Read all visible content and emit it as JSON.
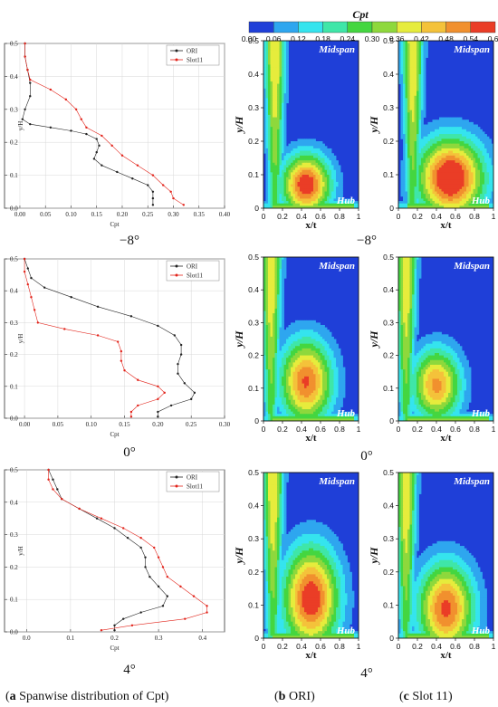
{
  "colorbar": {
    "title": "Cpt",
    "ticks": [
      "0.00",
      "0.06",
      "0.12",
      "0.18",
      "0.24",
      "0.30",
      "0.36",
      "0.42",
      "0.48",
      "0.54",
      "0.60"
    ],
    "colors": [
      "#1f3fd8",
      "#2ea6ef",
      "#35e4ee",
      "#3fe6a8",
      "#44d640",
      "#8ed83c",
      "#e6ec3c",
      "#f4c23a",
      "#f1902e",
      "#ea3d26"
    ]
  },
  "panel_labels": {
    "midspan": "Midspan",
    "hub": "Hub"
  },
  "contour_axes": {
    "ylabel": "y/H",
    "xlabel": "x/t",
    "yticks": [
      "0",
      "0.1",
      "0.2",
      "0.3",
      "0.4",
      "0.5"
    ],
    "xticks": [
      "0",
      "0.2",
      "0.4",
      "0.6",
      "0.8",
      "1"
    ]
  },
  "angles": [
    "−8°",
    "0°",
    "4°"
  ],
  "captions": {
    "a_letter": "a",
    "a_text": " Spanwise distribution of Cpt",
    "b_letter": "b",
    "b_text": " ORI",
    "c_letter": "c",
    "c_text": " Slot 11"
  },
  "chart_data": [
    {
      "type": "line",
      "angle": "−8°",
      "xlabel": "Cpt",
      "ylabel": "y/H",
      "xlim": [
        -0.03,
        0.4
      ],
      "ylim": [
        0,
        0.5
      ],
      "xticks": [
        "0.00",
        "0.05",
        "0.10",
        "0.15",
        "0.20",
        "0.25",
        "0.30",
        "0.35",
        "0.40"
      ],
      "yticks": [
        "0.0",
        "0.1",
        "0.2",
        "0.3",
        "0.4",
        "0.5"
      ],
      "legend_position": "top-right",
      "series": [
        {
          "name": "ORI",
          "color": "#222222",
          "points": [
            [
              0.01,
              0.5
            ],
            [
              0.01,
              0.46
            ],
            [
              0.015,
              0.42
            ],
            [
              0.02,
              0.38
            ],
            [
              0.02,
              0.34
            ],
            [
              0.01,
              0.3
            ],
            [
              0.005,
              0.27
            ],
            [
              0.02,
              0.255
            ],
            [
              0.06,
              0.245
            ],
            [
              0.1,
              0.235
            ],
            [
              0.13,
              0.225
            ],
            [
              0.15,
              0.21
            ],
            [
              0.155,
              0.19
            ],
            [
              0.15,
              0.17
            ],
            [
              0.145,
              0.15
            ],
            [
              0.16,
              0.13
            ],
            [
              0.19,
              0.11
            ],
            [
              0.22,
              0.09
            ],
            [
              0.25,
              0.07
            ],
            [
              0.26,
              0.05
            ],
            [
              0.26,
              0.03
            ],
            [
              0.26,
              0.01
            ]
          ]
        },
        {
          "name": "Slot11",
          "color": "#e2231a",
          "points": [
            [
              0.01,
              0.5
            ],
            [
              0.01,
              0.46
            ],
            [
              0.015,
              0.42
            ],
            [
              0.02,
              0.39
            ],
            [
              0.06,
              0.36
            ],
            [
              0.09,
              0.33
            ],
            [
              0.11,
              0.3
            ],
            [
              0.12,
              0.27
            ],
            [
              0.13,
              0.245
            ],
            [
              0.16,
              0.22
            ],
            [
              0.18,
              0.19
            ],
            [
              0.2,
              0.16
            ],
            [
              0.23,
              0.13
            ],
            [
              0.26,
              0.1
            ],
            [
              0.28,
              0.07
            ],
            [
              0.295,
              0.05
            ],
            [
              0.3,
              0.03
            ],
            [
              0.32,
              0.01
            ]
          ]
        }
      ]
    },
    {
      "type": "line",
      "angle": "0°",
      "xlabel": "Cpt",
      "ylabel": "y/H",
      "xlim": [
        -0.03,
        0.3
      ],
      "ylim": [
        0,
        0.5
      ],
      "xticks": [
        "0.00",
        "0.05",
        "0.10",
        "0.15",
        "0.20",
        "0.25",
        "0.30"
      ],
      "yticks": [
        "0.0",
        "0.1",
        "0.2",
        "0.3",
        "0.4",
        "0.5"
      ],
      "legend_position": "top-right",
      "series": [
        {
          "name": "ORI",
          "color": "#222222",
          "points": [
            [
              0.0,
              0.5
            ],
            [
              0.005,
              0.47
            ],
            [
              0.01,
              0.44
            ],
            [
              0.03,
              0.41
            ],
            [
              0.07,
              0.38
            ],
            [
              0.11,
              0.35
            ],
            [
              0.16,
              0.32
            ],
            [
              0.2,
              0.29
            ],
            [
              0.225,
              0.26
            ],
            [
              0.235,
              0.23
            ],
            [
              0.235,
              0.2
            ],
            [
              0.23,
              0.17
            ],
            [
              0.23,
              0.14
            ],
            [
              0.24,
              0.11
            ],
            [
              0.255,
              0.08
            ],
            [
              0.25,
              0.06
            ],
            [
              0.22,
              0.04
            ],
            [
              0.2,
              0.02
            ],
            [
              0.2,
              0.005
            ]
          ]
        },
        {
          "name": "Slot11",
          "color": "#e2231a",
          "points": [
            [
              0.0,
              0.5
            ],
            [
              0.0,
              0.46
            ],
            [
              0.005,
              0.42
            ],
            [
              0.01,
              0.38
            ],
            [
              0.015,
              0.34
            ],
            [
              0.02,
              0.3
            ],
            [
              0.06,
              0.28
            ],
            [
              0.11,
              0.26
            ],
            [
              0.14,
              0.24
            ],
            [
              0.145,
              0.21
            ],
            [
              0.145,
              0.18
            ],
            [
              0.15,
              0.15
            ],
            [
              0.17,
              0.12
            ],
            [
              0.2,
              0.1
            ],
            [
              0.21,
              0.08
            ],
            [
              0.2,
              0.06
            ],
            [
              0.17,
              0.04
            ],
            [
              0.16,
              0.02
            ],
            [
              0.16,
              0.005
            ]
          ]
        }
      ]
    },
    {
      "type": "line",
      "angle": "4°",
      "xlabel": "Cpt",
      "ylabel": "y/H",
      "xlim": [
        -0.05,
        0.45
      ],
      "ylim": [
        0,
        0.5
      ],
      "xticks": [
        "0.0",
        "0.1",
        "0.2",
        "0.3",
        "0.4"
      ],
      "yticks": [
        "0.0",
        "0.1",
        "0.2",
        "0.3",
        "0.4",
        "0.5"
      ],
      "legend_position": "top-right",
      "series": [
        {
          "name": "ORI",
          "color": "#222222",
          "points": [
            [
              0.05,
              0.5
            ],
            [
              0.06,
              0.47
            ],
            [
              0.07,
              0.44
            ],
            [
              0.08,
              0.41
            ],
            [
              0.12,
              0.38
            ],
            [
              0.16,
              0.35
            ],
            [
              0.2,
              0.32
            ],
            [
              0.23,
              0.29
            ],
            [
              0.26,
              0.26
            ],
            [
              0.27,
              0.23
            ],
            [
              0.27,
              0.2
            ],
            [
              0.28,
              0.17
            ],
            [
              0.3,
              0.14
            ],
            [
              0.32,
              0.11
            ],
            [
              0.31,
              0.08
            ],
            [
              0.26,
              0.06
            ],
            [
              0.22,
              0.04
            ],
            [
              0.2,
              0.02
            ],
            [
              0.2,
              0.005
            ]
          ]
        },
        {
          "name": "Slot11",
          "color": "#e2231a",
          "points": [
            [
              0.05,
              0.5
            ],
            [
              0.05,
              0.47
            ],
            [
              0.06,
              0.44
            ],
            [
              0.08,
              0.41
            ],
            [
              0.12,
              0.38
            ],
            [
              0.17,
              0.35
            ],
            [
              0.22,
              0.32
            ],
            [
              0.26,
              0.29
            ],
            [
              0.29,
              0.26
            ],
            [
              0.3,
              0.23
            ],
            [
              0.31,
              0.2
            ],
            [
              0.32,
              0.17
            ],
            [
              0.35,
              0.14
            ],
            [
              0.38,
              0.11
            ],
            [
              0.41,
              0.08
            ],
            [
              0.41,
              0.06
            ],
            [
              0.36,
              0.04
            ],
            [
              0.24,
              0.02
            ],
            [
              0.17,
              0.005
            ]
          ]
        }
      ]
    },
    {
      "type": "heatmap",
      "title": "Midspan",
      "xlabel": "x/t",
      "ylabel": "y/H",
      "xlim": [
        0,
        1
      ],
      "ylim": [
        0,
        0.5
      ],
      "levels": [
        0,
        0.06,
        0.12,
        0.18,
        0.24,
        0.3,
        0.36,
        0.42,
        0.48,
        0.54,
        0.6
      ],
      "panels": [
        {
          "column": "ORI",
          "angle": "−8°",
          "core": [
            0.45,
            0.07
          ],
          "peak": 0.6,
          "spread": [
            0.28,
            0.1
          ],
          "stem_x": 0.12
        },
        {
          "column": "Slot 11",
          "angle": "−8°",
          "core": [
            0.55,
            0.09
          ],
          "peak": 0.65,
          "spread": [
            0.38,
            0.13
          ],
          "stem_x": 0.15
        },
        {
          "column": "ORI",
          "angle": "0°",
          "core": [
            0.45,
            0.12
          ],
          "peak": 0.55,
          "spread": [
            0.3,
            0.14
          ],
          "stem_x": 0.08
        },
        {
          "column": "Slot 11",
          "angle": "0°",
          "core": [
            0.4,
            0.11
          ],
          "peak": 0.5,
          "spread": [
            0.28,
            0.12
          ],
          "stem_x": 0.08
        },
        {
          "column": "ORI",
          "angle": "4°",
          "core": [
            0.5,
            0.12
          ],
          "peak": 0.6,
          "spread": [
            0.32,
            0.17
          ],
          "stem_x": 0.1
        },
        {
          "column": "Slot 11",
          "angle": "4°",
          "core": [
            0.5,
            0.09
          ],
          "peak": 0.56,
          "spread": [
            0.32,
            0.15
          ],
          "stem_x": 0.08
        }
      ]
    }
  ]
}
